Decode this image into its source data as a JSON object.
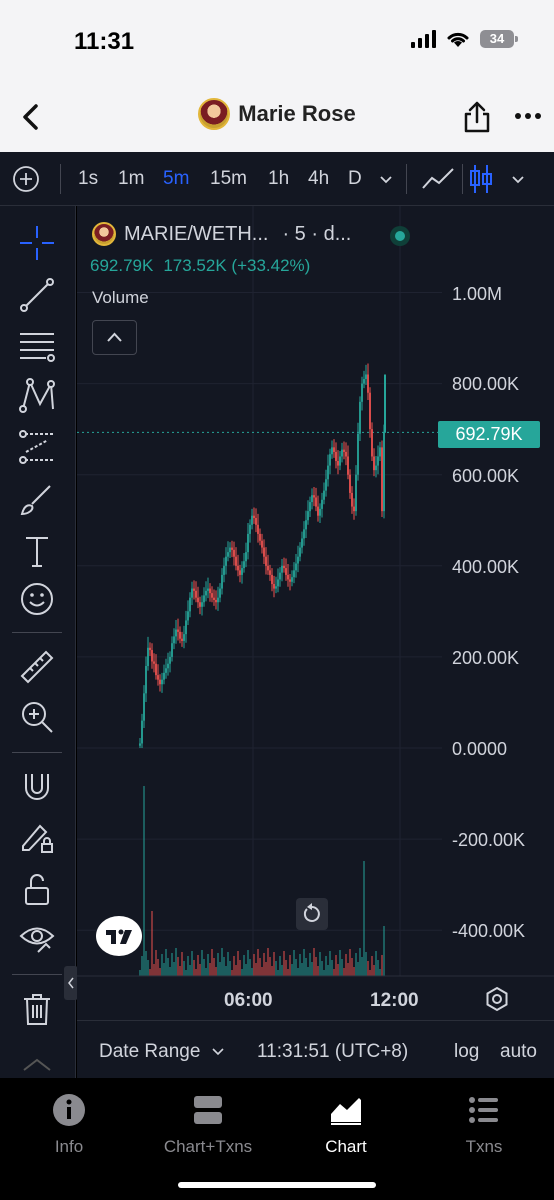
{
  "status_bar": {
    "time": "11:31",
    "battery": "34"
  },
  "header": {
    "title": "Marie Rose"
  },
  "toolbar": {
    "intervals": [
      "1s",
      "1m",
      "5m",
      "15m",
      "1h",
      "4h",
      "D"
    ],
    "active_interval": "5m"
  },
  "legend": {
    "symbol": "MARIE/WETH...",
    "interval_suffix": "· 5 · d...",
    "price": "692.79K",
    "change": "173.52K (+33.42%)",
    "volume_label": "Volume"
  },
  "price_axis": {
    "labels": [
      "1.00M",
      "800.00K",
      "600.00K",
      "400.00K",
      "200.00K",
      "0.0000",
      "-200.00K",
      "-400.00K"
    ],
    "current_price_tag": "692.79K"
  },
  "time_axis": {
    "labels": [
      "06:00",
      "12:00"
    ]
  },
  "range_bar": {
    "date_range": "Date Range",
    "time": "11:31:51 (UTC+8)",
    "log": "log",
    "auto": "auto"
  },
  "tabs": [
    {
      "label": "Info",
      "icon": "info-icon"
    },
    {
      "label": "Chart+Txns",
      "icon": "split-layout-icon"
    },
    {
      "label": "Chart",
      "icon": "area-chart-icon",
      "active": true
    },
    {
      "label": "Txns",
      "icon": "list-icon"
    }
  ],
  "colors": {
    "up": "#26a69a",
    "down": "#ef5350",
    "accent": "#2962ff",
    "background": "#131722"
  },
  "chart_data": {
    "type": "bar",
    "x": [
      0,
      1,
      2,
      3,
      4,
      5,
      6,
      7,
      8,
      9,
      10,
      11,
      12,
      13,
      14,
      15,
      16,
      17,
      18,
      19,
      20,
      21,
      22,
      23,
      24,
      25,
      26,
      27,
      28,
      29,
      30,
      31,
      32,
      33,
      34,
      35,
      36,
      37,
      38,
      39,
      40,
      41,
      42,
      43,
      44,
      45,
      46,
      47,
      48,
      49,
      50,
      51,
      52,
      53,
      54,
      55,
      56,
      57,
      58,
      59,
      60,
      61,
      62,
      63,
      64,
      65,
      66,
      67,
      68,
      69,
      70,
      71,
      72,
      73,
      74,
      75,
      76,
      77,
      78,
      79,
      80,
      81,
      82,
      83,
      84,
      85,
      86,
      87,
      88,
      89,
      90,
      91,
      92,
      93,
      94,
      95,
      96,
      97,
      98,
      99,
      100,
      101,
      102,
      103,
      104,
      105,
      106,
      107,
      108,
      109,
      110,
      111,
      112,
      113,
      114,
      115,
      116,
      117,
      118,
      119,
      120,
      121,
      122
    ],
    "open": [
      5,
      10,
      60,
      120,
      180,
      220,
      215,
      190,
      185,
      160,
      150,
      140,
      150,
      165,
      175,
      185,
      200,
      230,
      245,
      260,
      255,
      240,
      235,
      250,
      280,
      300,
      330,
      350,
      345,
      330,
      320,
      310,
      320,
      335,
      345,
      350,
      340,
      330,
      325,
      320,
      330,
      350,
      380,
      400,
      420,
      430,
      440,
      435,
      420,
      400,
      390,
      380,
      395,
      410,
      430,
      470,
      490,
      510,
      505,
      490,
      470,
      455,
      440,
      420,
      400,
      390,
      380,
      360,
      350,
      355,
      370,
      385,
      400,
      395,
      380,
      370,
      365,
      375,
      390,
      405,
      420,
      440,
      460,
      480,
      500,
      520,
      540,
      555,
      550,
      530,
      510,
      525,
      545,
      565,
      590,
      620,
      645,
      660,
      650,
      630,
      620,
      640,
      655,
      650,
      640,
      600,
      560,
      530,
      520,
      600,
      690,
      760,
      800,
      810,
      820,
      780,
      700,
      640,
      610,
      620,
      640,
      660,
      520
    ],
    "close": [
      10,
      60,
      120,
      180,
      220,
      215,
      190,
      185,
      160,
      150,
      140,
      150,
      165,
      175,
      185,
      200,
      230,
      245,
      260,
      255,
      240,
      235,
      250,
      280,
      300,
      330,
      350,
      345,
      330,
      320,
      310,
      320,
      335,
      345,
      350,
      340,
      330,
      325,
      320,
      330,
      350,
      380,
      400,
      420,
      430,
      440,
      435,
      420,
      400,
      390,
      380,
      395,
      410,
      430,
      470,
      490,
      510,
      505,
      490,
      470,
      455,
      440,
      420,
      400,
      390,
      380,
      360,
      350,
      355,
      370,
      385,
      400,
      395,
      380,
      370,
      365,
      375,
      390,
      405,
      420,
      440,
      460,
      480,
      500,
      520,
      540,
      555,
      550,
      530,
      510,
      525,
      545,
      565,
      590,
      620,
      645,
      660,
      650,
      630,
      620,
      640,
      655,
      650,
      640,
      600,
      560,
      530,
      520,
      600,
      690,
      760,
      800,
      810,
      820,
      780,
      700,
      640,
      610,
      620,
      640,
      660,
      520,
      692
    ],
    "ylabel": "",
    "ylim": [
      -500000,
      1100000
    ]
  }
}
